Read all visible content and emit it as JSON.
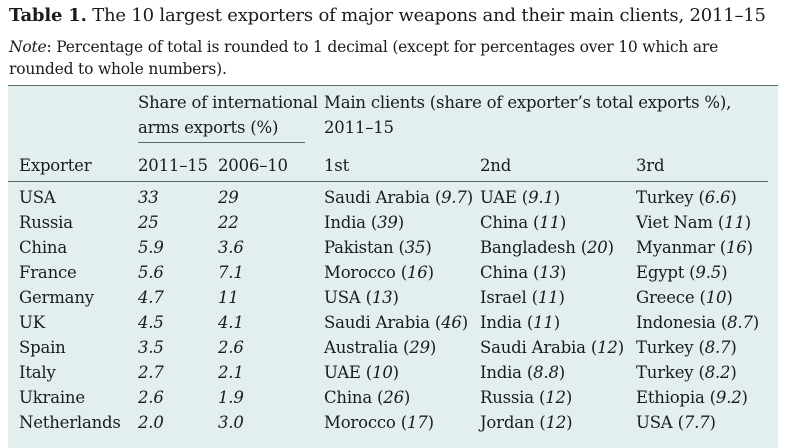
{
  "table": {
    "label": "Table 1.",
    "title": "The 10 largest exporters of major weapons and their main clients, 2011–15",
    "note_label": "Note",
    "note_text": ": Percentage of total is rounded to 1 decimal (except for percentages over 10 which are rounded to whole numbers).",
    "headers": {
      "share_line1": "Share of international",
      "share_line2": "arms exports (%)",
      "clients_line1": "Main clients (share of exporter’s total exports %),",
      "clients_line2": "2011–15",
      "exporter": "Exporter",
      "period1": "2011–15",
      "period2": "2006–10",
      "first": "1st",
      "second": "2nd",
      "third": "3rd"
    },
    "rows": [
      {
        "exporter": "USA",
        "s1": "33",
        "s2": "29",
        "c1": {
          "name": "Saudi Arabia",
          "val": "9.7"
        },
        "c2": {
          "name": "UAE",
          "val": "9.1"
        },
        "c3": {
          "name": "Turkey",
          "val": "6.6"
        }
      },
      {
        "exporter": "Russia",
        "s1": "25",
        "s2": "22",
        "c1": {
          "name": "India",
          "val": "39"
        },
        "c2": {
          "name": "China",
          "val": "11"
        },
        "c3": {
          "name": "Viet Nam",
          "val": "11"
        }
      },
      {
        "exporter": "China",
        "s1": "5.9",
        "s2": "3.6",
        "c1": {
          "name": "Pakistan",
          "val": "35"
        },
        "c2": {
          "name": "Bangladesh",
          "val": "20"
        },
        "c3": {
          "name": "Myanmar",
          "val": "16"
        }
      },
      {
        "exporter": "France",
        "s1": "5.6",
        "s2": "7.1",
        "c1": {
          "name": "Morocco",
          "val": "16"
        },
        "c2": {
          "name": "China",
          "val": "13"
        },
        "c3": {
          "name": "Egypt",
          "val": "9.5"
        }
      },
      {
        "exporter": "Germany",
        "s1": "4.7",
        "s2": "11",
        "c1": {
          "name": "USA",
          "val": "13"
        },
        "c2": {
          "name": "Israel",
          "val": "11"
        },
        "c3": {
          "name": "Greece",
          "val": "10"
        }
      },
      {
        "exporter": "UK",
        "s1": "4.5",
        "s2": "4.1",
        "c1": {
          "name": "Saudi Arabia",
          "val": "46"
        },
        "c2": {
          "name": "India",
          "val": "11"
        },
        "c3": {
          "name": "Indonesia",
          "val": "8.7"
        }
      },
      {
        "exporter": "Spain",
        "s1": "3.5",
        "s2": "2.6",
        "c1": {
          "name": "Australia",
          "val": "29"
        },
        "c2": {
          "name": "Saudi Arabia",
          "val": "12"
        },
        "c3": {
          "name": "Turkey",
          "val": "8.7"
        }
      },
      {
        "exporter": "Italy",
        "s1": "2.7",
        "s2": "2.1",
        "c1": {
          "name": "UAE",
          "val": "10"
        },
        "c2": {
          "name": "India",
          "val": "8.8"
        },
        "c3": {
          "name": "Turkey",
          "val": "8.2"
        }
      },
      {
        "exporter": "Ukraine",
        "s1": "2.6",
        "s2": "1.9",
        "c1": {
          "name": "China",
          "val": "26"
        },
        "c2": {
          "name": "Russia",
          "val": "12"
        },
        "c3": {
          "name": "Ethiopia",
          "val": "9.2"
        }
      },
      {
        "exporter": "Netherlands",
        "s1": "2.0",
        "s2": "3.0",
        "c1": {
          "name": "Morocco",
          "val": "17"
        },
        "c2": {
          "name": "Jordan",
          "val": "12"
        },
        "c3": {
          "name": "USA",
          "val": "7.7"
        }
      }
    ]
  }
}
